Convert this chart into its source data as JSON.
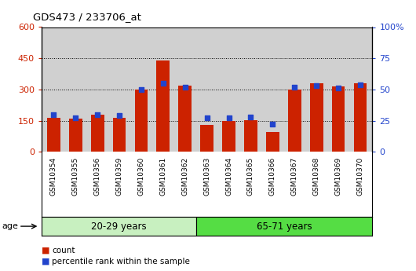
{
  "title": "GDS473 / 233706_at",
  "samples": [
    "GSM10354",
    "GSM10355",
    "GSM10356",
    "GSM10359",
    "GSM10360",
    "GSM10361",
    "GSM10362",
    "GSM10363",
    "GSM10364",
    "GSM10365",
    "GSM10366",
    "GSM10367",
    "GSM10368",
    "GSM10369",
    "GSM10370"
  ],
  "counts": [
    165,
    160,
    178,
    165,
    298,
    440,
    320,
    130,
    148,
    152,
    95,
    300,
    330,
    315,
    330
  ],
  "percentile_ranks": [
    30,
    27,
    30,
    29,
    50,
    55,
    52,
    27,
    27,
    28,
    22,
    52,
    53,
    51,
    54
  ],
  "group1_label": "20-29 years",
  "group2_label": "65-71 years",
  "group1_count": 7,
  "group2_count": 8,
  "bar_color": "#cc2200",
  "dot_color": "#2244cc",
  "ylim_left": [
    0,
    600
  ],
  "ylim_right": [
    0,
    100
  ],
  "yticks_left": [
    0,
    150,
    300,
    450,
    600
  ],
  "yticks_right": [
    0,
    25,
    50,
    75,
    100
  ],
  "bg_color_plot": "#d0d0d0",
  "bg_color_group1": "#c8f0c0",
  "bg_color_group2": "#55dd44",
  "legend_count_label": "count",
  "legend_pct_label": "percentile rank within the sample"
}
